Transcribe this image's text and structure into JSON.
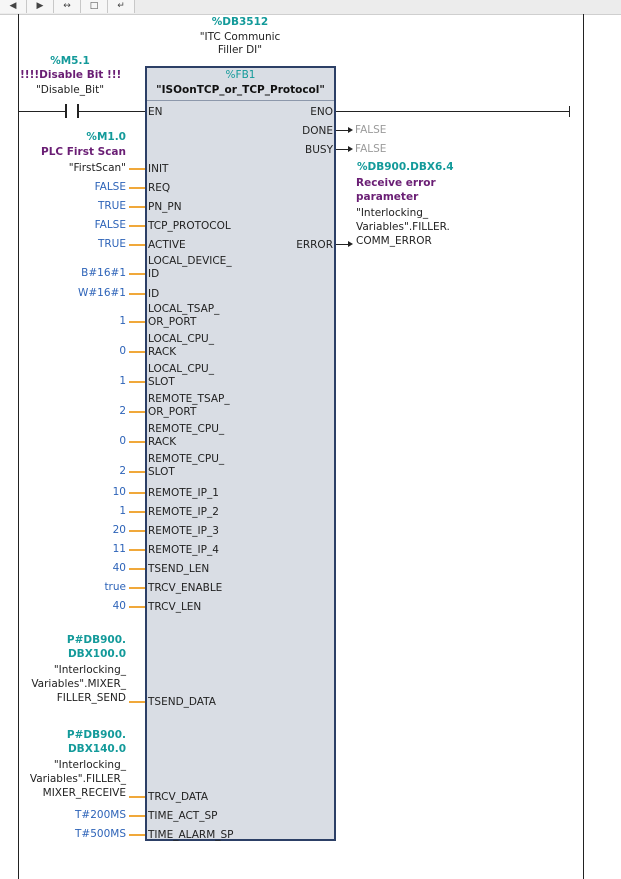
{
  "toolbar": {
    "buttons": [
      "◀",
      "▶",
      "↔",
      "□",
      "↵"
    ]
  },
  "instance": {
    "address": "%DB3512",
    "name_line1": "\"ITC Communic",
    "name_line2": "Filler DI\""
  },
  "block": {
    "address": "%FB1",
    "name": "\"ISOonTCP_or_TCP_Protocol\""
  },
  "contact": {
    "address": "%M5.1",
    "comment": "!!!!Disable Bit !!!",
    "symbol": "\"Disable_Bit\""
  },
  "pins": {
    "en": "EN",
    "eno": "ENO",
    "done": "DONE",
    "busy": "BUSY",
    "error": "ERROR",
    "init": "INIT",
    "req": "REQ",
    "pn_pn": "PN_PN",
    "tcp_protocol": "TCP_PROTOCOL",
    "active": "ACTIVE",
    "local_device_id_1": "LOCAL_DEVICE_",
    "local_device_id_2": "ID",
    "id": "ID",
    "local_tsap_1": "LOCAL_TSAP_",
    "local_tsap_2": "OR_PORT",
    "local_cpu_rack_1": "LOCAL_CPU_",
    "local_cpu_rack_2": "RACK",
    "local_cpu_slot_1": "LOCAL_CPU_",
    "local_cpu_slot_2": "SLOT",
    "remote_tsap_1": "REMOTE_TSAP_",
    "remote_tsap_2": "OR_PORT",
    "remote_cpu_rack_1": "REMOTE_CPU_",
    "remote_cpu_rack_2": "RACK",
    "remote_cpu_slot_1": "REMOTE_CPU_",
    "remote_cpu_slot_2": "SLOT",
    "remote_ip_1": "REMOTE_IP_1",
    "remote_ip_2": "REMOTE_IP_2",
    "remote_ip_3": "REMOTE_IP_3",
    "remote_ip_4": "REMOTE_IP_4",
    "tsend_len": "TSEND_LEN",
    "trcv_enable": "TRCV_ENABLE",
    "trcv_len": "TRCV_LEN",
    "tsend_data": "TSEND_DATA",
    "trcv_data": "TRCV_DATA",
    "time_act_sp": "TIME_ACT_SP",
    "time_alarm_sp": "TIME_ALARM_SP"
  },
  "outputs": {
    "done_val": "FALSE",
    "busy_val": "FALSE",
    "error_address": "%DB900.DBX6.4",
    "error_comment_1": "Receive error",
    "error_comment_2": "parameter",
    "error_symbol_1": "\"Interlocking_",
    "error_symbol_2": "Variables\".FILLER.",
    "error_symbol_3": "COMM_ERROR"
  },
  "inputs": {
    "init_address": "%M1.0",
    "init_comment": "PLC First Scan",
    "init_symbol": "\"FirstScan\"",
    "req": "FALSE",
    "pn_pn": "TRUE",
    "tcp_protocol": "FALSE",
    "active": "TRUE",
    "local_device_id": "B#16#1",
    "id": "W#16#1",
    "local_tsap": "1",
    "local_cpu_rack": "0",
    "local_cpu_slot": "1",
    "remote_tsap": "2",
    "remote_cpu_rack": "0",
    "remote_cpu_slot": "2",
    "remote_ip_1": "10",
    "remote_ip_2": "1",
    "remote_ip_3": "20",
    "remote_ip_4": "11",
    "tsend_len": "40",
    "trcv_enable": "true",
    "trcv_len": "40",
    "tsend_addr_1": "P#DB900.",
    "tsend_addr_2": "DBX100.0",
    "tsend_sym_1": "\"Interlocking_",
    "tsend_sym_2": "Variables\".MIXER_",
    "tsend_sym_3": "FILLER_SEND",
    "trcv_addr_1": "P#DB900.",
    "trcv_addr_2": "DBX140.0",
    "trcv_sym_1": "\"Interlocking_",
    "trcv_sym_2": "Variables\".FILLER_",
    "trcv_sym_3": "MIXER_RECEIVE",
    "time_act_sp": "T#200MS",
    "time_alarm_sp": "T#500MS"
  }
}
